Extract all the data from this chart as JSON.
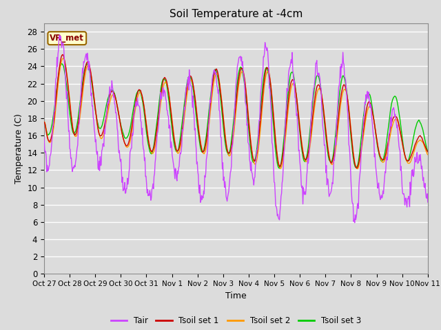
{
  "title": "Soil Temperature at -4cm",
  "xlabel": "Time",
  "ylabel": "Temperature (C)",
  "ylim": [
    0,
    29
  ],
  "background_color": "#dcdcdc",
  "plot_bg_color": "#dcdcdc",
  "grid_color": "#ffffff",
  "legend_labels": [
    "Tair",
    "Tsoil set 1",
    "Tsoil set 2",
    "Tsoil set 3"
  ],
  "legend_colors": [
    "#cc44ff",
    "#cc0000",
    "#ff9900",
    "#00cc00"
  ],
  "annotation_text": "VR_met",
  "annotation_box_color": "#ffffcc",
  "annotation_border_color": "#996600",
  "xtick_labels": [
    "Oct 27",
    "Oct 28",
    "Oct 29",
    "Oct 30",
    "Oct 31",
    "Nov 1",
    "Nov 2",
    "Nov 3",
    "Nov 4",
    "Nov 5",
    "Nov 6",
    "Nov 7",
    "Nov 8",
    "Nov 9",
    "Nov 10",
    "Nov 11"
  ],
  "xtick_positions": [
    0,
    1,
    2,
    3,
    4,
    5,
    6,
    7,
    8,
    9,
    10,
    11,
    12,
    13,
    14,
    15
  ],
  "ytick_labels": [
    "0",
    "2",
    "4",
    "6",
    "8",
    "10",
    "12",
    "14",
    "16",
    "18",
    "20",
    "22",
    "24",
    "26",
    "28"
  ],
  "ytick_positions": [
    0,
    2,
    4,
    6,
    8,
    10,
    12,
    14,
    16,
    18,
    20,
    22,
    24,
    26,
    28
  ],
  "line_width": 1.0
}
